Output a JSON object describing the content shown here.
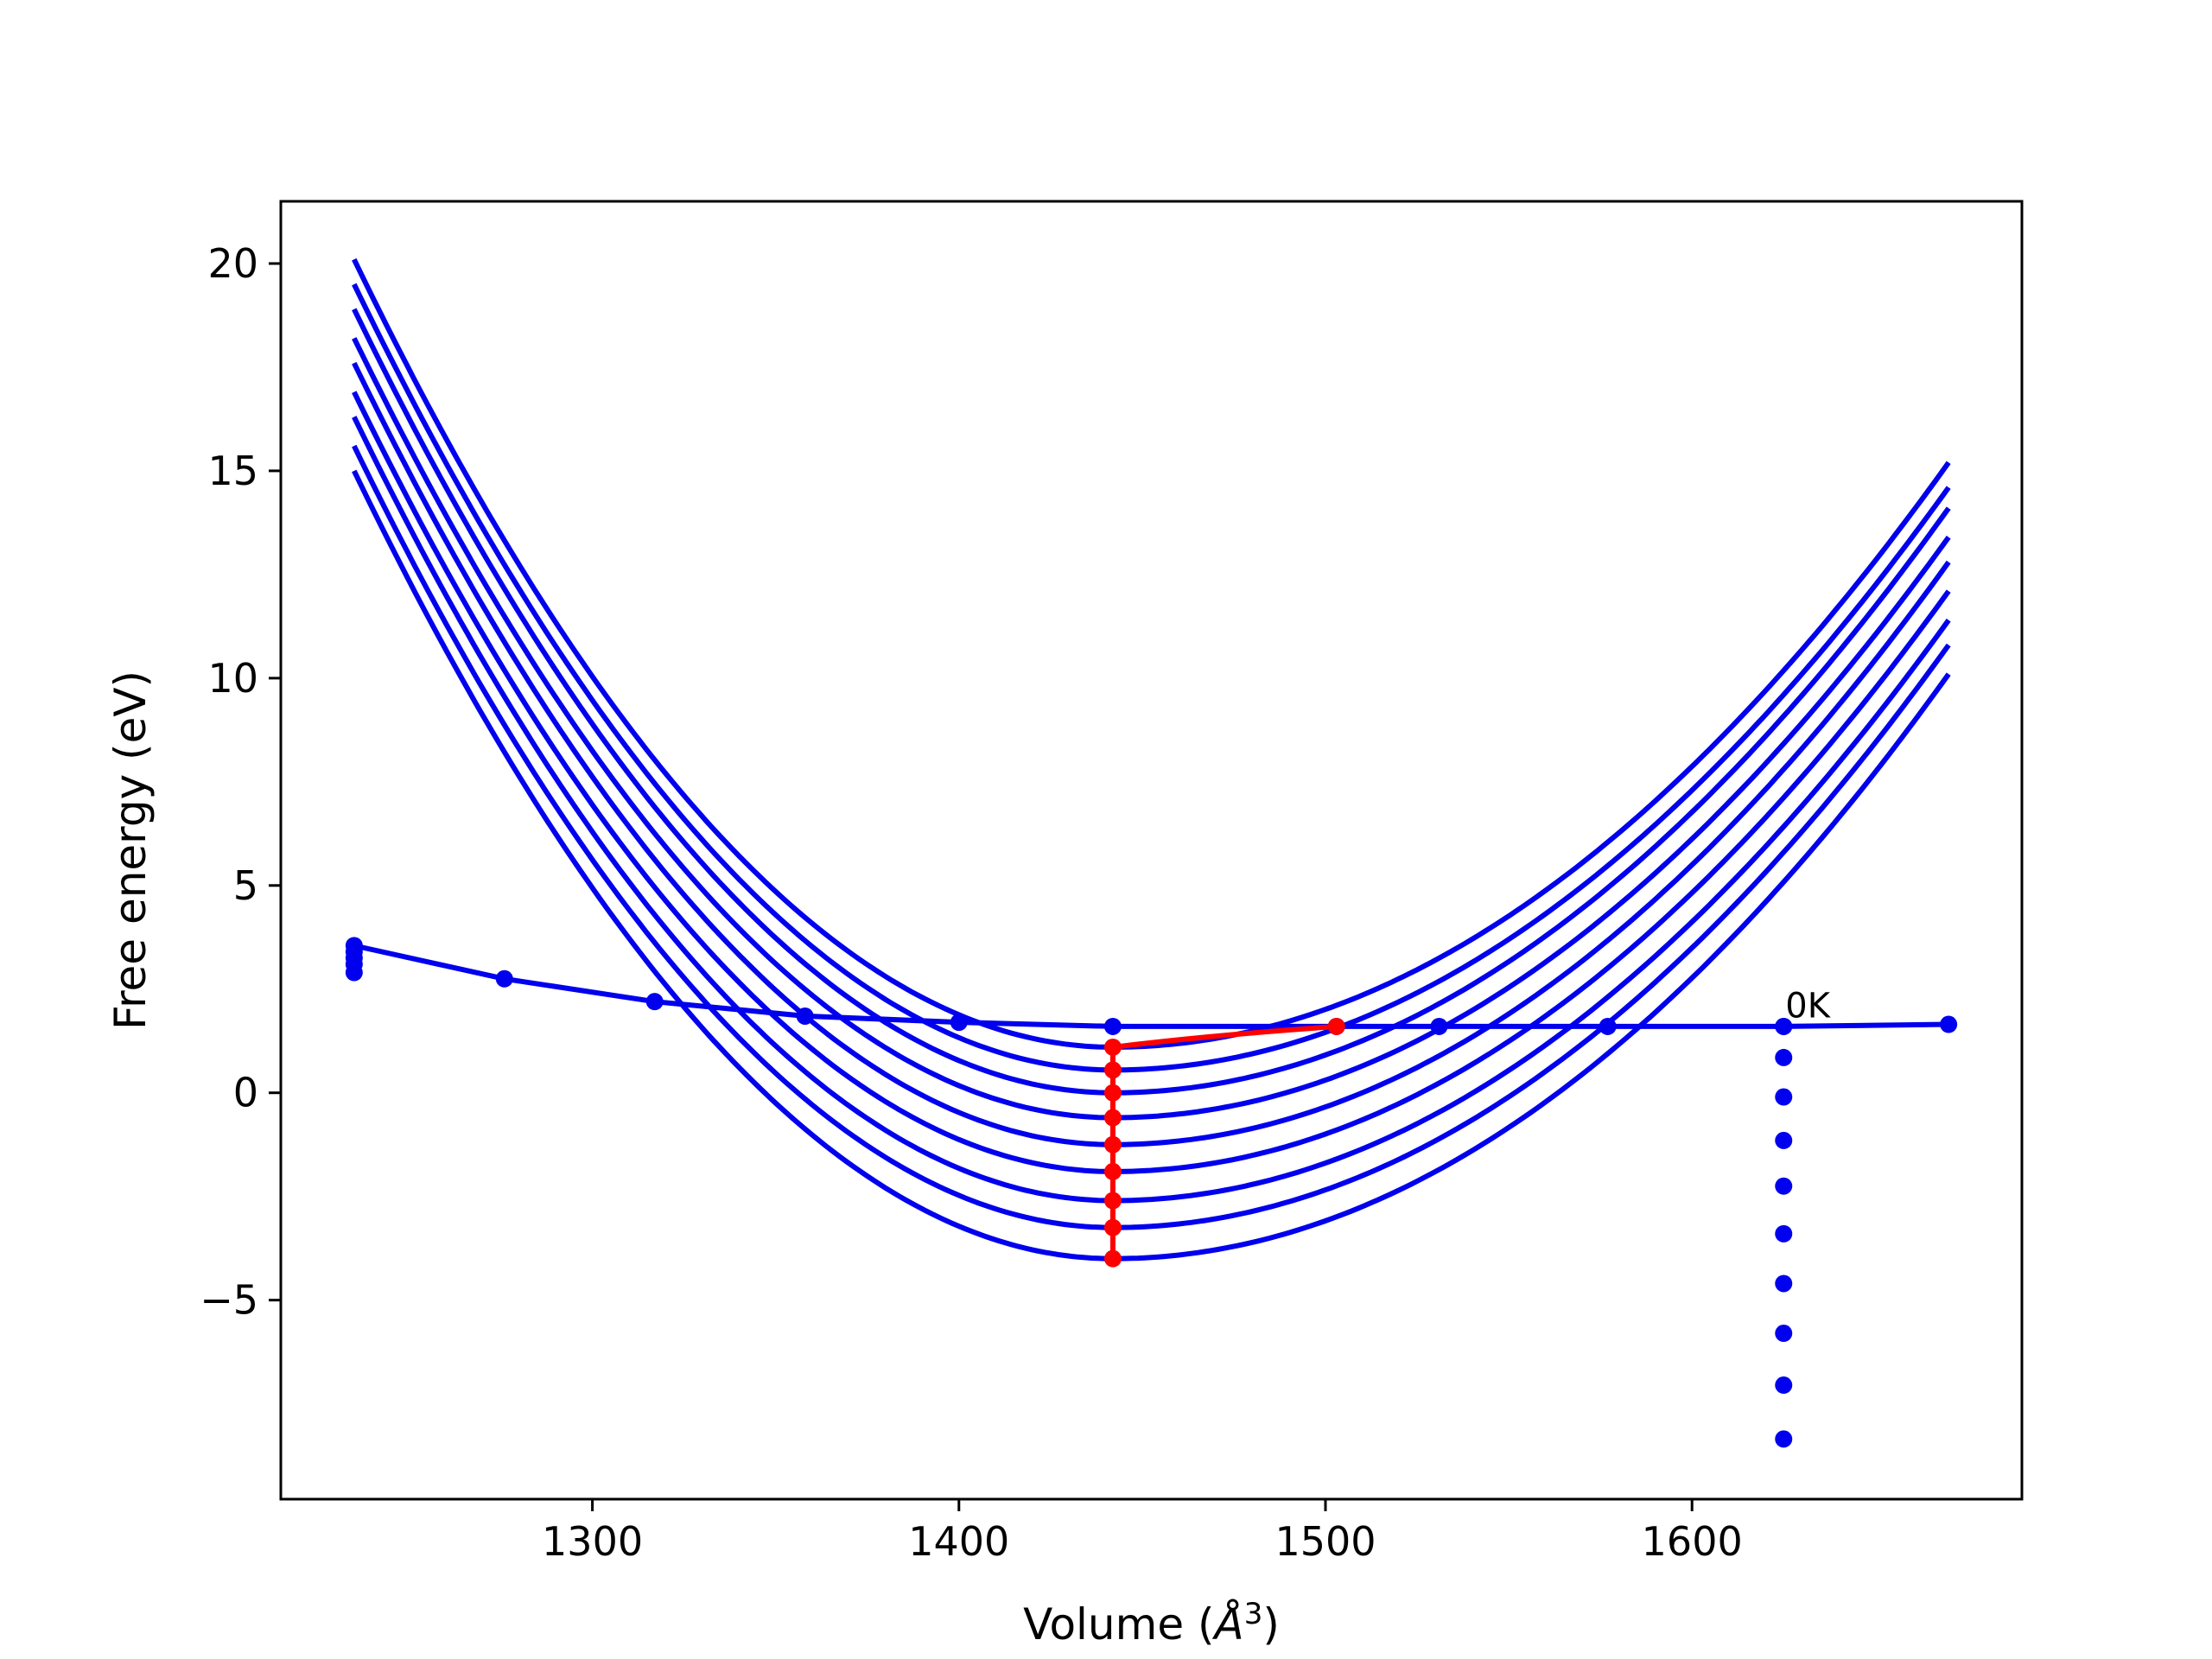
{
  "chart_data": {
    "type": "line",
    "title": "",
    "xlabel": "Volume (",
    "xlabel_symbol": "Å",
    "xlabel_power": "3",
    "xlabel_close": ")",
    "ylabel": "Free energy (eV)",
    "xlim": [
      1215,
      1690
    ],
    "ylim": [
      -9.8,
      21.5
    ],
    "xticks": [
      1300,
      1400,
      1500,
      1600
    ],
    "yticks": [
      -5,
      0,
      5,
      10,
      15,
      20
    ],
    "ytick_labels": [
      "−5",
      "0",
      "5",
      "10",
      "15",
      "20"
    ],
    "grid": false,
    "legend": "none",
    "annotation": {
      "text": "0K",
      "x": 1625,
      "y": 1.65
    },
    "colors": {
      "curves": "#0000ee",
      "minima": "#ff0000",
      "axes": "#000000"
    },
    "curve_x_range": [
      1235,
      1670
    ],
    "curve_minimum_volume": 1442,
    "curve_minima": [
      1.1,
      0.55,
      0.0,
      -0.6,
      -1.25,
      -1.9,
      -2.6,
      -3.25,
      -4.0
    ],
    "curve_left_end": [
      20.1,
      19.5,
      18.9,
      18.2,
      17.6,
      16.9,
      16.3,
      15.6,
      15.0
    ],
    "curve_right_end": [
      15.2,
      14.6,
      14.1,
      13.4,
      12.8,
      12.1,
      11.4,
      10.8,
      10.1
    ],
    "eos_points": {
      "x": [
        1235,
        1235,
        1235,
        1235,
        1235,
        1276,
        1317,
        1358,
        1400,
        1442,
        1503,
        1531,
        1577,
        1625,
        1670
      ],
      "y": [
        2.9,
        3.1,
        3.25,
        3.4,
        3.55,
        2.75,
        2.2,
        1.85,
        1.7,
        1.6,
        1.6,
        1.6,
        1.6,
        1.6,
        1.65
      ]
    },
    "minima_series": {
      "x": [
        1442,
        1442,
        1442,
        1442,
        1442,
        1442,
        1442,
        1442,
        1442,
        1503
      ],
      "y": [
        1.1,
        0.55,
        0.0,
        -0.6,
        -1.25,
        -1.9,
        -2.6,
        -3.25,
        -4.0,
        1.6
      ]
    },
    "vertical_points": {
      "x": [
        1625,
        1625,
        1625,
        1625,
        1625,
        1625,
        1625,
        1625,
        1625,
        1625
      ],
      "y": [
        1.6,
        0.85,
        -0.1,
        -1.15,
        -2.25,
        -3.4,
        -4.6,
        -5.8,
        -7.05,
        -8.35
      ]
    }
  }
}
